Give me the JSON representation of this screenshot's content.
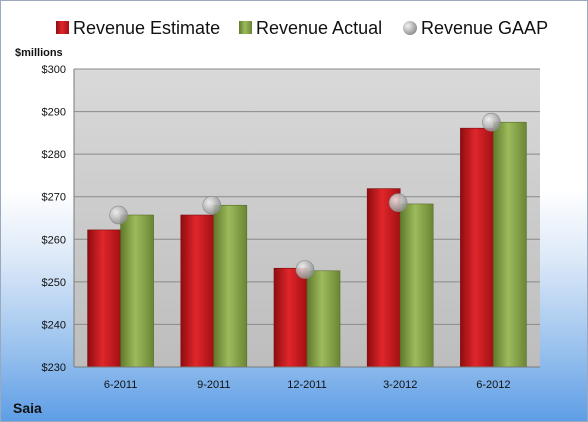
{
  "company": "Saia",
  "chart_data": {
    "type": "bar",
    "categories": [
      "6-2011",
      "9-2011",
      "12-2011",
      "3-2012",
      "6-2012"
    ],
    "series": [
      {
        "name": "Revenue Estimate",
        "values": [
          262.2,
          265.7,
          253.2,
          271.9,
          286.1
        ],
        "color": "#c4161c",
        "kind": "bar"
      },
      {
        "name": "Revenue Actual",
        "values": [
          265.7,
          268.0,
          252.6,
          268.3,
          287.5
        ],
        "color": "#8aa64c",
        "kind": "bar"
      },
      {
        "name": "Revenue GAAP",
        "values": [
          265.7,
          268.0,
          252.9,
          268.6,
          287.5
        ],
        "color": "#b8b8b8",
        "kind": "marker"
      }
    ],
    "ylabel": "$millions",
    "ylim": [
      230,
      300
    ],
    "yticks": [
      230,
      240,
      250,
      260,
      270,
      280,
      290,
      300
    ],
    "ytick_labels": [
      "$230",
      "$240",
      "$250",
      "$260",
      "$270",
      "$280",
      "$290",
      "$300"
    ],
    "grid": true,
    "legend": "top"
  }
}
